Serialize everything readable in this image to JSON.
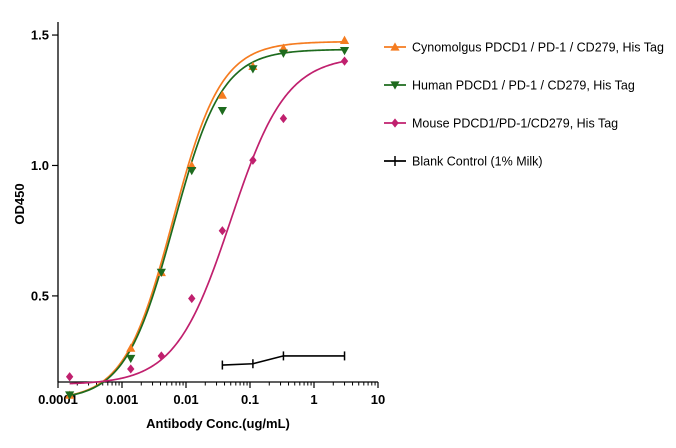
{
  "chart_data": {
    "type": "scatter",
    "title": "",
    "xlabel": "Antibody Conc.(ug/mL)",
    "ylabel": "OD450",
    "x_scale": "log",
    "xlim": [
      0.0001,
      10
    ],
    "ylim": [
      0.17,
      1.55
    ],
    "x_ticks": [
      0.0001,
      0.001,
      0.01,
      0.1,
      1,
      10
    ],
    "x_tick_labels": [
      "0.0001",
      "0.001",
      "0.01",
      "0.1",
      "1",
      "10"
    ],
    "y_ticks": [
      0.5,
      1.0,
      1.5
    ],
    "y_tick_labels": [
      "0.5",
      "1.0",
      "1.5"
    ],
    "grid": false,
    "legend_position": "right",
    "series": [
      {
        "name": "Cynomolgus PDCD1 / PD-1 / CD279,  His Tag",
        "color": "#F57C20",
        "marker": "triangle-up",
        "x": [
          0.000152,
          0.00137,
          0.00412,
          0.0123,
          0.037,
          0.111,
          0.333,
          3.0
        ],
        "y": [
          0.12,
          0.3,
          0.59,
          1.0,
          1.27,
          1.38,
          1.45,
          1.48
        ],
        "fit": {
          "bottom": 0.1,
          "top": 1.475,
          "ec50": 0.0062,
          "hill": 1.15
        }
      },
      {
        "name": "Human PDCD1 / PD-1 / CD279, His Tag",
        "color": "#1E6B1E",
        "marker": "triangle-down",
        "x": [
          0.000152,
          0.00137,
          0.00412,
          0.0123,
          0.037,
          0.111,
          0.333,
          3.0
        ],
        "y": [
          0.12,
          0.26,
          0.59,
          0.98,
          1.21,
          1.37,
          1.43,
          1.44
        ],
        "fit": {
          "bottom": 0.1,
          "top": 1.445,
          "ec50": 0.0064,
          "hill": 1.15
        }
      },
      {
        "name": "Mouse PDCD1/PD-1/CD279, His Tag",
        "color": "#C0206E",
        "marker": "diamond",
        "x": [
          0.000152,
          0.00137,
          0.00412,
          0.0123,
          0.037,
          0.111,
          0.333,
          3.0
        ],
        "y": [
          0.19,
          0.22,
          0.27,
          0.49,
          0.75,
          1.02,
          1.18,
          1.4
        ],
        "fit": {
          "bottom": 0.16,
          "top": 1.42,
          "ec50": 0.05,
          "hill": 1.0
        }
      },
      {
        "name": "Blank Control (1% Milk)",
        "color": "#000000",
        "marker": "plus",
        "x": [
          0.037,
          0.111,
          0.333,
          3.0
        ],
        "y": [
          0.235,
          0.24,
          0.27,
          0.27
        ]
      }
    ]
  }
}
